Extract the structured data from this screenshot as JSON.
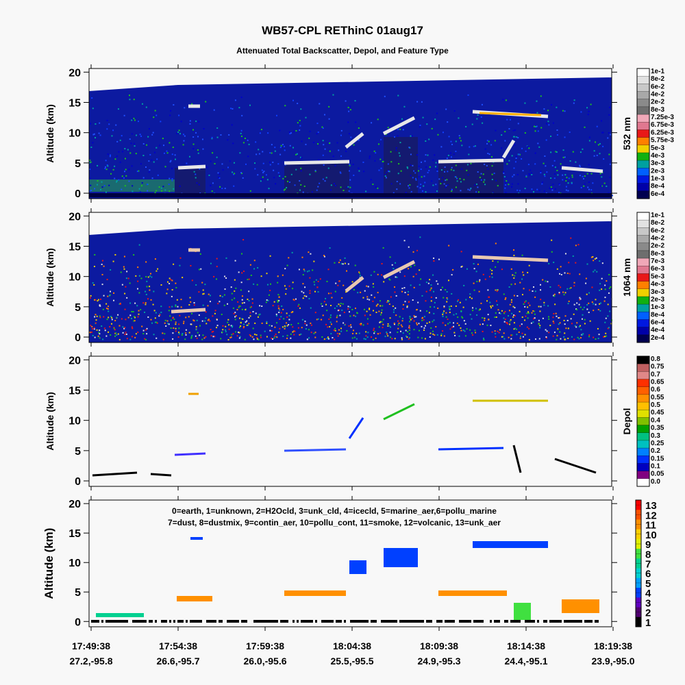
{
  "title": "WB57-CPL REThinC 01aug17",
  "subtitle": "Attenuated Total Backscatter, Depol, and Feature Type",
  "chart_data": [
    {
      "type": "heatmap",
      "ylabel": "Altitude (km)",
      "ylim": [
        -0.9,
        20.6
      ],
      "yticks": [
        0,
        5,
        10,
        15,
        20
      ],
      "colorbar_label": "532 nm",
      "colorbar_ticks": [
        {
          "value": 0.1,
          "label": "1e-1"
        },
        {
          "value": 0.08,
          "label": "8e-2"
        },
        {
          "value": 0.06,
          "label": "6e-2"
        },
        {
          "value": 0.04,
          "label": "4e-2"
        },
        {
          "value": 0.02,
          "label": "2e-2"
        },
        {
          "value": 0.008,
          "label": "8e-3"
        },
        {
          "value": 0.00725,
          "label": "7.25e-3"
        },
        {
          "value": 0.00675,
          "label": "6.75e-3"
        },
        {
          "value": 0.00625,
          "label": "6.25e-3"
        },
        {
          "value": 0.00575,
          "label": "5.75e-3"
        },
        {
          "value": 0.005,
          "label": "5e-3"
        },
        {
          "value": 0.004,
          "label": "4e-3"
        },
        {
          "value": 0.003,
          "label": "3e-3"
        },
        {
          "value": 0.002,
          "label": "2e-3"
        },
        {
          "value": 0.001,
          "label": "1e-3"
        },
        {
          "value": 0.0008,
          "label": "8e-4"
        },
        {
          "value": 0.0006,
          "label": "6e-4"
        }
      ],
      "colorbar_colors": [
        "#ffffff",
        "#e2e2e2",
        "#c8c8c8",
        "#a8a8a8",
        "#8a8a8a",
        "#6e6e6e",
        "#f0a8b8",
        "#e07890",
        "#e81818",
        "#ff8000",
        "#f0d000",
        "#10b010",
        "#00a0a0",
        "#0060ff",
        "#0018e0",
        "#0000a8",
        "#000050"
      ]
    },
    {
      "type": "heatmap",
      "ylabel": "Altitude (km)",
      "ylim": [
        -0.9,
        20.6
      ],
      "yticks": [
        0,
        5,
        10,
        15,
        20
      ],
      "colorbar_label": "1064 nm",
      "colorbar_ticks": [
        {
          "value": 0.1,
          "label": "1e-1"
        },
        {
          "value": 0.08,
          "label": "8e-2"
        },
        {
          "value": 0.06,
          "label": "6e-2"
        },
        {
          "value": 0.04,
          "label": "4e-2"
        },
        {
          "value": 0.02,
          "label": "2e-2"
        },
        {
          "value": 0.008,
          "label": "8e-3"
        },
        {
          "value": 0.007,
          "label": "7e-3"
        },
        {
          "value": 0.006,
          "label": "6e-3"
        },
        {
          "value": 0.005,
          "label": "5e-3"
        },
        {
          "value": 0.004,
          "label": "4e-3"
        },
        {
          "value": 0.003,
          "label": "3e-3"
        },
        {
          "value": 0.002,
          "label": "2e-3"
        },
        {
          "value": 0.001,
          "label": "1e-3"
        },
        {
          "value": 0.0008,
          "label": "8e-4"
        },
        {
          "value": 0.0006,
          "label": "6e-4"
        },
        {
          "value": 0.0004,
          "label": "4e-4"
        },
        {
          "value": 0.0002,
          "label": "2e-4"
        }
      ],
      "colorbar_colors": [
        "#ffffff",
        "#e2e2e2",
        "#c8c8c8",
        "#a8a8a8",
        "#8a8a8a",
        "#6e6e6e",
        "#f0a8b8",
        "#e07890",
        "#e81818",
        "#ff8000",
        "#f0d000",
        "#10b010",
        "#00a0a0",
        "#0060ff",
        "#0018e0",
        "#0000a8",
        "#000050"
      ]
    },
    {
      "type": "heatmap",
      "ylabel": "Altitude (km)",
      "ylim": [
        -0.9,
        20.6
      ],
      "yticks": [
        0,
        5,
        10,
        15,
        20
      ],
      "colorbar_label": "Depol",
      "colorbar_ticks": [
        0.8,
        0.75,
        0.7,
        0.65,
        0.6,
        0.55,
        0.5,
        0.45,
        0.4,
        0.35,
        0.3,
        0.25,
        0.2,
        0.15,
        0.1,
        0.05,
        {
          "value": 0,
          "label": "0.0"
        }
      ],
      "colorbar_colors": [
        "#000000",
        "#c06060",
        "#e08888",
        "#ff3000",
        "#ff6000",
        "#ff9000",
        "#ffc000",
        "#e0e000",
        "#80c000",
        "#00a000",
        "#00c080",
        "#00c0c0",
        "#0080ff",
        "#0030ff",
        "#0000c0",
        "#800080",
        "#ffffff"
      ]
    },
    {
      "type": "heatmap",
      "ylabel": "Altitude (km)",
      "ylim": [
        -0.9,
        20.6
      ],
      "yticks": [
        0,
        5,
        10,
        15,
        20
      ],
      "annotations": [
        "0=earth, 1=unknown, 2=H2Ocld, 3=unk_cld, 4=icecld, 5=marine_aer,6=pollu_marine",
        "7=dust, 8=dustmix, 9=contin_aer, 10=pollu_cont, 11=smoke, 12=volcanic, 13=unk_aer"
      ],
      "colorbar_ticks": [
        13,
        12,
        11,
        10,
        9,
        8,
        7,
        6,
        5,
        4,
        3,
        2,
        1
      ],
      "colorbar_colors": [
        "#ff0000",
        "#ff5000",
        "#ff9000",
        "#ffd000",
        "#e0f000",
        "#40e040",
        "#00d090",
        "#00d0d0",
        "#00a0ff",
        "#0040ff",
        "#6000c0",
        "#500070",
        "#000000"
      ],
      "x_tick_labels": {
        "times": [
          "17:49:38",
          "17:54:38",
          "17:59:38",
          "18:04:38",
          "18:09:38",
          "18:14:38",
          "18:19:38"
        ],
        "locations": [
          "27.2,-95.8",
          "26.6,-95.7",
          "26.0,-95.6",
          "25.5,-95.5",
          "24.9,-95.3",
          "24.4,-95.1",
          "23.9,-95.0"
        ]
      }
    }
  ]
}
